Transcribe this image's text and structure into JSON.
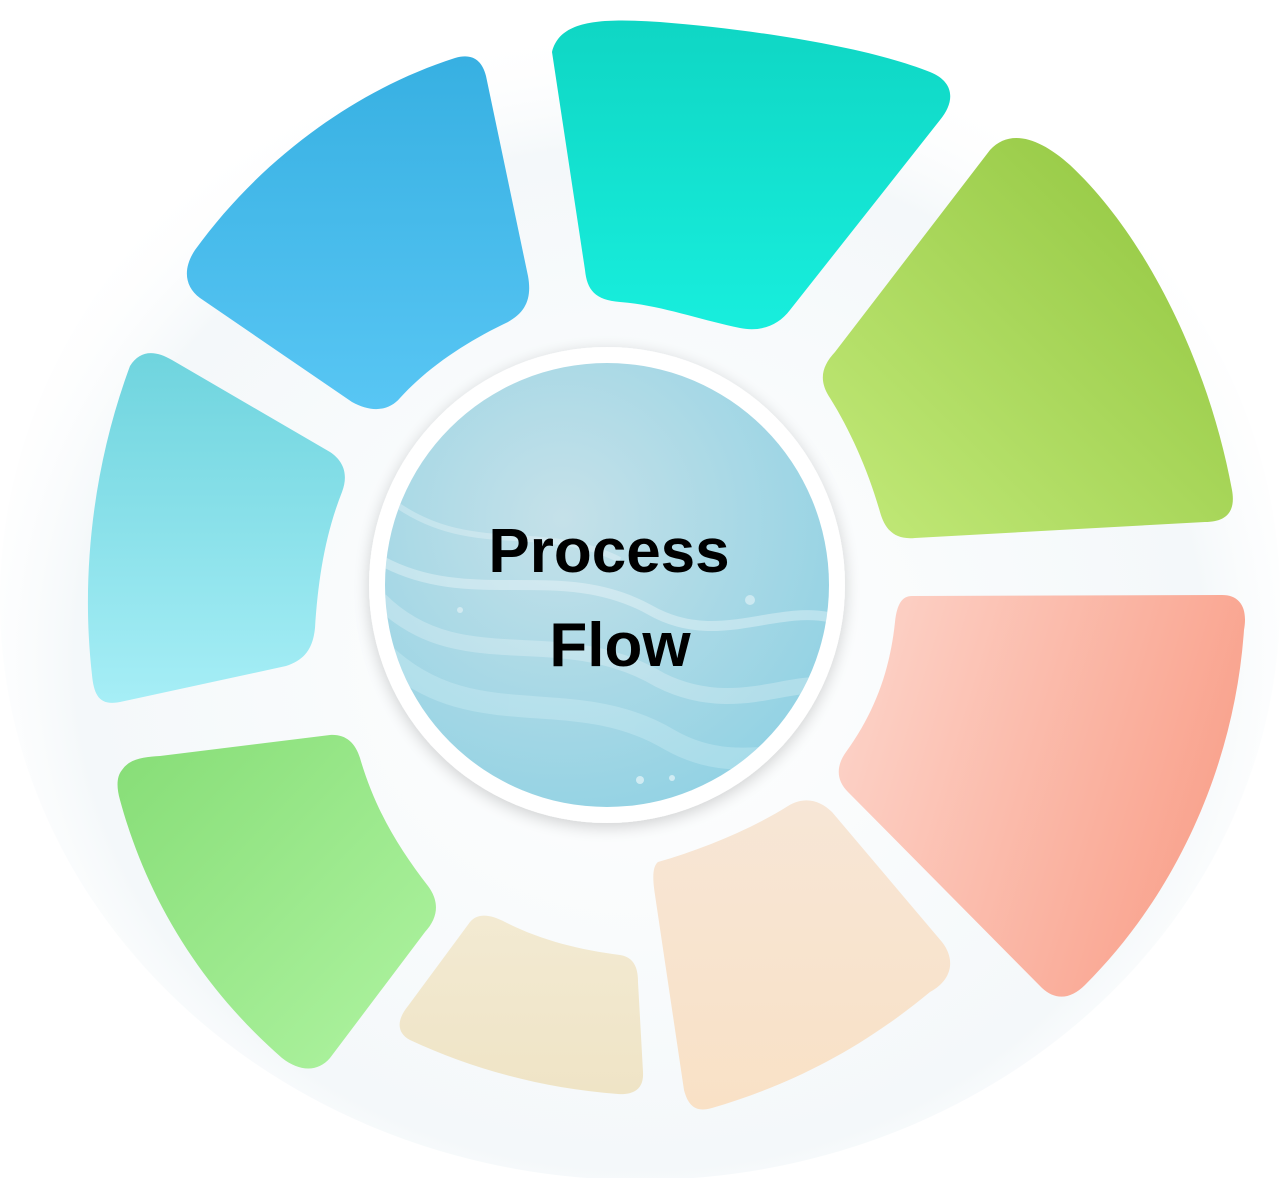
{
  "diagram": {
    "type": "circular-process-wheel",
    "center": {
      "line1": "Process",
      "line2": "Flow"
    },
    "segments": [
      {
        "id": "segment-teal",
        "color_start": "#0fd6c4",
        "color_end": "#18eedd"
      },
      {
        "id": "segment-lime",
        "color_start": "#c3ea7a",
        "color_end": "#8fc43c"
      },
      {
        "id": "segment-salmon",
        "color_start": "#fdd6cc",
        "color_end": "#f9a38e"
      },
      {
        "id": "segment-peach",
        "color_start": "#f7e6d6",
        "color_end": "#f9e1c6"
      },
      {
        "id": "segment-cream",
        "color_start": "#f3ead2",
        "color_end": "#efe4c6"
      },
      {
        "id": "segment-green",
        "color_start": "#86dd76",
        "color_end": "#b0f4a2"
      },
      {
        "id": "segment-sky",
        "color_start": "#6fd4de",
        "color_end": "#a6eef6"
      },
      {
        "id": "segment-blue",
        "color_start": "#37b0e2",
        "color_end": "#58c6f4"
      }
    ],
    "center_color_start": "#c5e1e9",
    "center_color_end": "#8fd1e3"
  }
}
